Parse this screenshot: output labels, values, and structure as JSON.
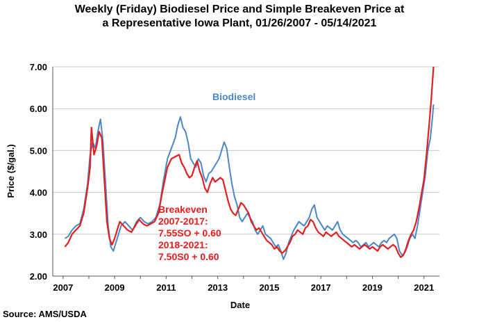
{
  "chart_data": {
    "type": "line",
    "title_line1": "Weekly (Friday) Biodiesel Price and Simple Breakeven Price at",
    "title_line2": "a Representative Iowa Plant, 01/26/2007 - 05/14/2021",
    "xlabel": "Date",
    "ylabel": "Price ($/gal.)",
    "ylim": [
      2.0,
      7.0
    ],
    "xlim": [
      2006.6,
      2021.6
    ],
    "y_ticks": [
      "2.00",
      "3.00",
      "4.00",
      "5.00",
      "6.00",
      "7.00"
    ],
    "x_ticks": [
      "2007",
      "2009",
      "2011",
      "2013",
      "2015",
      "2017",
      "2019",
      "2021"
    ],
    "grid": "horizontal",
    "series": [
      {
        "name": "Biodiesel",
        "color": "#4a86c8",
        "points": [
          [
            2007.07,
            2.9
          ],
          [
            2007.2,
            2.95
          ],
          [
            2007.35,
            3.1
          ],
          [
            2007.5,
            3.2
          ],
          [
            2007.65,
            3.25
          ],
          [
            2007.8,
            3.6
          ],
          [
            2007.95,
            4.2
          ],
          [
            2008.05,
            4.9
          ],
          [
            2008.15,
            5.2
          ],
          [
            2008.25,
            5.05
          ],
          [
            2008.35,
            5.45
          ],
          [
            2008.45,
            5.75
          ],
          [
            2008.55,
            5.2
          ],
          [
            2008.65,
            4.2
          ],
          [
            2008.75,
            3.2
          ],
          [
            2008.85,
            2.7
          ],
          [
            2008.95,
            2.6
          ],
          [
            2009.05,
            2.8
          ],
          [
            2009.15,
            3.0
          ],
          [
            2009.25,
            3.2
          ],
          [
            2009.4,
            3.3
          ],
          [
            2009.55,
            3.2
          ],
          [
            2009.7,
            3.1
          ],
          [
            2009.85,
            3.3
          ],
          [
            2010.0,
            3.4
          ],
          [
            2010.15,
            3.3
          ],
          [
            2010.3,
            3.25
          ],
          [
            2010.45,
            3.3
          ],
          [
            2010.6,
            3.4
          ],
          [
            2010.75,
            3.7
          ],
          [
            2010.9,
            4.3
          ],
          [
            2011.05,
            4.8
          ],
          [
            2011.2,
            5.05
          ],
          [
            2011.35,
            5.3
          ],
          [
            2011.45,
            5.6
          ],
          [
            2011.55,
            5.8
          ],
          [
            2011.65,
            5.55
          ],
          [
            2011.75,
            5.45
          ],
          [
            2011.85,
            5.2
          ],
          [
            2011.95,
            4.8
          ],
          [
            2012.05,
            4.7
          ],
          [
            2012.15,
            4.6
          ],
          [
            2012.25,
            4.8
          ],
          [
            2012.35,
            4.7
          ],
          [
            2012.45,
            4.4
          ],
          [
            2012.55,
            4.25
          ],
          [
            2012.65,
            4.45
          ],
          [
            2012.75,
            4.5
          ],
          [
            2012.85,
            4.6
          ],
          [
            2012.95,
            4.7
          ],
          [
            2013.05,
            4.8
          ],
          [
            2013.15,
            5.0
          ],
          [
            2013.25,
            5.2
          ],
          [
            2013.35,
            5.05
          ],
          [
            2013.45,
            4.6
          ],
          [
            2013.55,
            4.2
          ],
          [
            2013.65,
            3.9
          ],
          [
            2013.75,
            3.7
          ],
          [
            2013.85,
            3.4
          ],
          [
            2013.95,
            3.3
          ],
          [
            2014.05,
            3.4
          ],
          [
            2014.15,
            3.5
          ],
          [
            2014.25,
            3.4
          ],
          [
            2014.35,
            3.3
          ],
          [
            2014.45,
            3.1
          ],
          [
            2014.55,
            3.0
          ],
          [
            2014.65,
            3.1
          ],
          [
            2014.75,
            3.2
          ],
          [
            2014.85,
            3.0
          ],
          [
            2014.95,
            2.95
          ],
          [
            2015.05,
            2.9
          ],
          [
            2015.15,
            2.8
          ],
          [
            2015.25,
            2.7
          ],
          [
            2015.35,
            2.75
          ],
          [
            2015.45,
            2.6
          ],
          [
            2015.55,
            2.4
          ],
          [
            2015.65,
            2.55
          ],
          [
            2015.75,
            2.8
          ],
          [
            2015.85,
            2.95
          ],
          [
            2015.95,
            3.1
          ],
          [
            2016.05,
            3.2
          ],
          [
            2016.15,
            3.3
          ],
          [
            2016.25,
            3.25
          ],
          [
            2016.35,
            3.2
          ],
          [
            2016.45,
            3.3
          ],
          [
            2016.55,
            3.4
          ],
          [
            2016.65,
            3.6
          ],
          [
            2016.75,
            3.7
          ],
          [
            2016.85,
            3.4
          ],
          [
            2016.95,
            3.3
          ],
          [
            2017.05,
            3.2
          ],
          [
            2017.15,
            3.1
          ],
          [
            2017.25,
            3.2
          ],
          [
            2017.35,
            3.15
          ],
          [
            2017.45,
            3.1
          ],
          [
            2017.55,
            3.2
          ],
          [
            2017.65,
            3.3
          ],
          [
            2017.75,
            3.1
          ],
          [
            2017.85,
            3.0
          ],
          [
            2017.95,
            2.95
          ],
          [
            2018.05,
            2.9
          ],
          [
            2018.15,
            2.85
          ],
          [
            2018.25,
            2.8
          ],
          [
            2018.35,
            2.85
          ],
          [
            2018.45,
            2.8
          ],
          [
            2018.55,
            2.7
          ],
          [
            2018.65,
            2.75
          ],
          [
            2018.75,
            2.8
          ],
          [
            2018.85,
            2.7
          ],
          [
            2018.95,
            2.75
          ],
          [
            2019.05,
            2.8
          ],
          [
            2019.15,
            2.75
          ],
          [
            2019.25,
            2.7
          ],
          [
            2019.35,
            2.8
          ],
          [
            2019.45,
            2.85
          ],
          [
            2019.55,
            2.8
          ],
          [
            2019.65,
            2.9
          ],
          [
            2019.75,
            2.95
          ],
          [
            2019.85,
            3.0
          ],
          [
            2019.95,
            2.9
          ],
          [
            2020.05,
            2.6
          ],
          [
            2020.15,
            2.5
          ],
          [
            2020.25,
            2.55
          ],
          [
            2020.35,
            2.7
          ],
          [
            2020.45,
            2.9
          ],
          [
            2020.55,
            3.0
          ],
          [
            2020.65,
            2.9
          ],
          [
            2020.75,
            3.2
          ],
          [
            2020.85,
            3.6
          ],
          [
            2020.95,
            4.0
          ],
          [
            2021.05,
            4.4
          ],
          [
            2021.15,
            5.0
          ],
          [
            2021.25,
            5.3
          ],
          [
            2021.33,
            5.8
          ],
          [
            2021.37,
            6.1
          ]
        ]
      },
      {
        "name": "Breakeven",
        "color": "#e41e1e",
        "points": [
          [
            2007.07,
            2.7
          ],
          [
            2007.2,
            2.8
          ],
          [
            2007.35,
            3.0
          ],
          [
            2007.5,
            3.1
          ],
          [
            2007.65,
            3.2
          ],
          [
            2007.8,
            3.5
          ],
          [
            2007.95,
            4.1
          ],
          [
            2008.05,
            4.6
          ],
          [
            2008.1,
            5.55
          ],
          [
            2008.2,
            4.9
          ],
          [
            2008.3,
            5.1
          ],
          [
            2008.4,
            5.45
          ],
          [
            2008.5,
            5.3
          ],
          [
            2008.6,
            4.3
          ],
          [
            2008.7,
            3.3
          ],
          [
            2008.8,
            2.9
          ],
          [
            2008.9,
            2.75
          ],
          [
            2009.0,
            2.9
          ],
          [
            2009.1,
            3.1
          ],
          [
            2009.2,
            3.3
          ],
          [
            2009.35,
            3.2
          ],
          [
            2009.5,
            3.1
          ],
          [
            2009.65,
            3.05
          ],
          [
            2009.8,
            3.2
          ],
          [
            2009.95,
            3.35
          ],
          [
            2010.1,
            3.25
          ],
          [
            2010.25,
            3.2
          ],
          [
            2010.4,
            3.25
          ],
          [
            2010.55,
            3.3
          ],
          [
            2010.7,
            3.5
          ],
          [
            2010.85,
            4.0
          ],
          [
            2010.95,
            4.3
          ],
          [
            2011.05,
            4.6
          ],
          [
            2011.2,
            4.8
          ],
          [
            2011.35,
            4.85
          ],
          [
            2011.5,
            4.9
          ],
          [
            2011.6,
            4.7
          ],
          [
            2011.7,
            4.6
          ],
          [
            2011.8,
            4.45
          ],
          [
            2011.9,
            4.35
          ],
          [
            2012.0,
            4.4
          ],
          [
            2012.1,
            4.6
          ],
          [
            2012.2,
            4.75
          ],
          [
            2012.3,
            4.5
          ],
          [
            2012.4,
            4.35
          ],
          [
            2012.5,
            4.1
          ],
          [
            2012.6,
            4.0
          ],
          [
            2012.7,
            4.2
          ],
          [
            2012.8,
            4.35
          ],
          [
            2012.9,
            4.25
          ],
          [
            2013.0,
            4.3
          ],
          [
            2013.1,
            4.35
          ],
          [
            2013.2,
            4.3
          ],
          [
            2013.3,
            4.05
          ],
          [
            2013.4,
            3.8
          ],
          [
            2013.5,
            3.6
          ],
          [
            2013.6,
            3.5
          ],
          [
            2013.7,
            3.45
          ],
          [
            2013.8,
            3.6
          ],
          [
            2013.9,
            3.75
          ],
          [
            2014.0,
            3.7
          ],
          [
            2014.1,
            3.6
          ],
          [
            2014.2,
            3.5
          ],
          [
            2014.3,
            3.3
          ],
          [
            2014.4,
            3.2
          ],
          [
            2014.5,
            3.1
          ],
          [
            2014.6,
            3.15
          ],
          [
            2014.7,
            3.05
          ],
          [
            2014.8,
            2.95
          ],
          [
            2014.9,
            2.85
          ],
          [
            2015.0,
            2.8
          ],
          [
            2015.1,
            2.75
          ],
          [
            2015.2,
            2.65
          ],
          [
            2015.3,
            2.7
          ],
          [
            2015.4,
            2.6
          ],
          [
            2015.5,
            2.55
          ],
          [
            2015.6,
            2.6
          ],
          [
            2015.7,
            2.7
          ],
          [
            2015.8,
            2.8
          ],
          [
            2015.9,
            2.95
          ],
          [
            2016.0,
            3.0
          ],
          [
            2016.1,
            3.1
          ],
          [
            2016.2,
            3.05
          ],
          [
            2016.3,
            3.0
          ],
          [
            2016.4,
            3.15
          ],
          [
            2016.5,
            3.2
          ],
          [
            2016.6,
            3.35
          ],
          [
            2016.7,
            3.3
          ],
          [
            2016.8,
            3.15
          ],
          [
            2016.9,
            3.05
          ],
          [
            2017.0,
            3.0
          ],
          [
            2017.1,
            2.95
          ],
          [
            2017.2,
            3.05
          ],
          [
            2017.3,
            3.0
          ],
          [
            2017.4,
            2.95
          ],
          [
            2017.5,
            3.0
          ],
          [
            2017.6,
            3.05
          ],
          [
            2017.7,
            2.95
          ],
          [
            2017.8,
            2.9
          ],
          [
            2017.9,
            2.85
          ],
          [
            2018.0,
            2.8
          ],
          [
            2018.1,
            2.75
          ],
          [
            2018.2,
            2.7
          ],
          [
            2018.3,
            2.75
          ],
          [
            2018.4,
            2.7
          ],
          [
            2018.5,
            2.65
          ],
          [
            2018.6,
            2.7
          ],
          [
            2018.7,
            2.75
          ],
          [
            2018.8,
            2.7
          ],
          [
            2018.9,
            2.65
          ],
          [
            2019.0,
            2.7
          ],
          [
            2019.1,
            2.65
          ],
          [
            2019.2,
            2.6
          ],
          [
            2019.3,
            2.7
          ],
          [
            2019.4,
            2.75
          ],
          [
            2019.5,
            2.7
          ],
          [
            2019.6,
            2.65
          ],
          [
            2019.7,
            2.7
          ],
          [
            2019.8,
            2.75
          ],
          [
            2019.9,
            2.7
          ],
          [
            2020.0,
            2.55
          ],
          [
            2020.1,
            2.45
          ],
          [
            2020.2,
            2.5
          ],
          [
            2020.3,
            2.65
          ],
          [
            2020.4,
            2.85
          ],
          [
            2020.5,
            3.0
          ],
          [
            2020.6,
            3.1
          ],
          [
            2020.7,
            3.3
          ],
          [
            2020.8,
            3.6
          ],
          [
            2020.9,
            3.95
          ],
          [
            2021.0,
            4.3
          ],
          [
            2021.1,
            4.9
          ],
          [
            2021.2,
            5.6
          ],
          [
            2021.28,
            6.2
          ],
          [
            2021.37,
            7.0
          ]
        ]
      }
    ],
    "annotations": {
      "biodiesel_label": "Biodiesel",
      "breakeven_title": "Breakeven",
      "formula_line1": "2007-2017:",
      "formula_line2": "7.55SO + 0.60",
      "formula_line3": "2018-2021:",
      "formula_line4": "7.50S0 + 0.60"
    }
  },
  "source": "Source: AMS/USDA"
}
